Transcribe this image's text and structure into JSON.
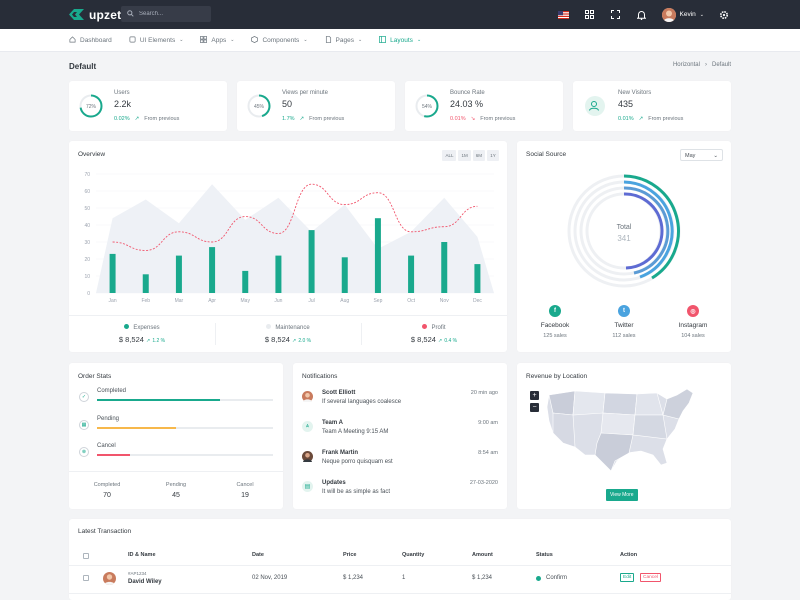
{
  "app": {
    "name": "upzet"
  },
  "search": {
    "placeholder": "Search..."
  },
  "user": {
    "name": "Kevin"
  },
  "nav": {
    "items": [
      {
        "label": "Dashboard"
      },
      {
        "label": "UI Elements"
      },
      {
        "label": "Apps"
      },
      {
        "label": "Components"
      },
      {
        "label": "Pages"
      },
      {
        "label": "Layouts"
      }
    ]
  },
  "page": {
    "title": "Default",
    "breadcrumb": [
      "Horizontal",
      "Default"
    ]
  },
  "stats": [
    {
      "label": "Users",
      "value": "2.2k",
      "percent": "72%",
      "change": "0.02%",
      "change_color": "#19a98d",
      "note": "From previous",
      "progress": 0.72
    },
    {
      "label": "Views per minute",
      "value": "50",
      "percent": "45%",
      "change": "1.7%",
      "change_color": "#19a98d",
      "note": "From previous",
      "progress": 0.45
    },
    {
      "label": "Bounce Rate",
      "value": "24.03 %",
      "percent": "54%",
      "change": "0.01%",
      "change_color": "#f1556c",
      "note": "From previous",
      "progress": 0.54
    },
    {
      "label": "New Visitors",
      "value": "435",
      "percent": "",
      "change": "0.01%",
      "change_color": "#19a98d",
      "note": "From previous",
      "progress": 0
    }
  ],
  "overview": {
    "title": "Overview",
    "ranges": [
      "ALL",
      "1M",
      "6M",
      "1Y"
    ],
    "footer": [
      {
        "name": "Expenses",
        "value": "$ 8,524",
        "change": "1.2 %",
        "color": "#19a98d"
      },
      {
        "name": "Maintenance",
        "value": "$ 8,524",
        "change": "2.0 %",
        "color": "#e9ecef"
      },
      {
        "name": "Profit",
        "value": "$ 8,524",
        "change": "0.4 %",
        "color": "#f1556c"
      }
    ]
  },
  "chart_data": {
    "type": "bar",
    "categories": [
      "Jan",
      "Feb",
      "Mar",
      "Apr",
      "May",
      "Jun",
      "Jul",
      "Aug",
      "Sep",
      "Oct",
      "Nov",
      "Dec"
    ],
    "yticks": [
      0,
      10,
      20,
      30,
      40,
      50,
      60,
      70
    ],
    "ylim": [
      0,
      70
    ],
    "series": [
      {
        "values": [
          23,
          11,
          22,
          27,
          13,
          22,
          37,
          21,
          44,
          22,
          30,
          17
        ],
        "color": "#19a98d",
        "kind": "bar"
      },
      {
        "values": [
          30,
          25,
          36,
          30,
          45,
          35,
          64,
          52,
          59,
          36,
          39,
          51
        ],
        "color": "#f1556c",
        "kind": "dashed-line"
      },
      {
        "values": [
          44,
          55,
          41,
          64,
          43,
          56,
          36,
          52,
          26,
          36,
          56,
          33
        ],
        "color": "#eef1f6",
        "kind": "area"
      }
    ]
  },
  "social": {
    "title": "Social Source",
    "period": "May",
    "total_label": "Total",
    "total_value": "341",
    "sources": [
      {
        "name": "Facebook",
        "sales": "125 sales",
        "color": "#19a98d",
        "icon": "facebook-icon",
        "glyph": "f"
      },
      {
        "name": "Twitter",
        "sales": "112 sales",
        "color": "#4aa3df",
        "icon": "twitter-icon",
        "glyph": "t"
      },
      {
        "name": "Instagram",
        "sales": "104 sales",
        "color": "#f1556c",
        "icon": "instagram-icon",
        "glyph": "◎"
      }
    ]
  },
  "order_stats": {
    "title": "Order Stats",
    "rows": [
      {
        "label": "Completed",
        "progress": 0.7,
        "color": "#19a98d",
        "icon": "check-circle-icon"
      },
      {
        "label": "Pending",
        "progress": 0.45,
        "color": "#f7b84b",
        "icon": "calendar-icon"
      },
      {
        "label": "Cancel",
        "progress": 0.19,
        "color": "#f1556c",
        "icon": "cancel-circle-icon"
      }
    ],
    "summary": [
      {
        "label": "Completed",
        "value": "70"
      },
      {
        "label": "Pending",
        "value": "45"
      },
      {
        "label": "Cancel",
        "value": "19"
      }
    ]
  },
  "notifications": {
    "title": "Notifications",
    "items": [
      {
        "name": "Scott Elliott",
        "text": "If several languages coalesce",
        "time": "20 min ago"
      },
      {
        "name": "Team A",
        "text": "Team A Meeting 9:15 AM",
        "time": "9:00 am"
      },
      {
        "name": "Frank Martin",
        "text": "Neque porro quisquam est",
        "time": "8:54 am"
      },
      {
        "name": "Updates",
        "text": "It will be as simple as fact",
        "time": "27-03-2020"
      }
    ]
  },
  "revenue": {
    "title": "Revenue by Location",
    "zoom_in": "+",
    "zoom_out": "−",
    "button": "View More"
  },
  "transactions": {
    "title": "Latest Transaction",
    "columns": [
      "ID & Name",
      "Date",
      "Price",
      "Quantity",
      "Amount",
      "Status",
      "Action"
    ],
    "rows": [
      {
        "id": "#AP1234",
        "name": "David Wiley",
        "date": "02 Nov, 2019",
        "price": "$ 1,234",
        "quantity": "1",
        "amount": "$ 1,234",
        "status": "Confirm",
        "edit": "Edit",
        "cancel": "Cancel"
      }
    ]
  }
}
